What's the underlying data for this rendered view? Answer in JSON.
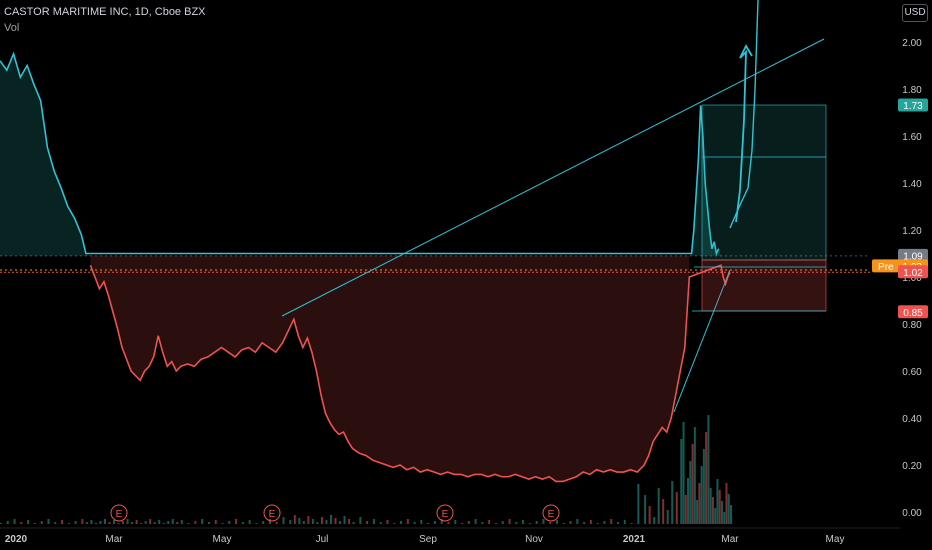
{
  "header": {
    "title": "CASTOR MARITIME INC, 1D, Cboe BZX",
    "indicator": "Vol",
    "currency": "USD"
  },
  "chart_data": {
    "type": "line",
    "symbol": "CASTOR MARITIME INC",
    "interval": "1D",
    "exchange": "Cboe BZX",
    "ylim": [
      0,
      2.1
    ],
    "y_ticks": [
      "2.00",
      "1.80",
      "1.60",
      "1.40",
      "1.20",
      "1.00",
      "0.80",
      "0.60",
      "0.40",
      "0.20",
      "0.00"
    ],
    "x_ticks": [
      "2020",
      "Mar",
      "May",
      "Jul",
      "Sep",
      "Nov",
      "2021",
      "Mar",
      "May"
    ],
    "series": [
      {
        "values": [
          [
            0,
            1.92
          ],
          [
            3,
            1.88
          ],
          [
            6,
            1.95
          ],
          [
            9,
            1.85
          ],
          [
            12,
            1.9
          ],
          [
            15,
            1.82
          ],
          [
            18,
            1.75
          ],
          [
            21,
            1.55
          ],
          [
            24,
            1.45
          ],
          [
            27,
            1.38
          ],
          [
            30,
            1.3
          ],
          [
            33,
            1.25
          ],
          [
            36,
            1.18
          ],
          [
            38,
            1.1
          ],
          [
            40,
            1.05
          ],
          [
            42,
            1.0
          ],
          [
            44,
            0.95
          ],
          [
            46,
            0.98
          ],
          [
            48,
            0.92
          ],
          [
            50,
            0.85
          ],
          [
            52,
            0.78
          ],
          [
            54,
            0.7
          ],
          [
            56,
            0.65
          ],
          [
            58,
            0.6
          ],
          [
            60,
            0.58
          ],
          [
            62,
            0.56
          ],
          [
            64,
            0.6
          ],
          [
            66,
            0.62
          ],
          [
            68,
            0.66
          ],
          [
            70,
            0.75
          ],
          [
            72,
            0.68
          ],
          [
            74,
            0.62
          ],
          [
            76,
            0.64
          ],
          [
            78,
            0.6
          ],
          [
            80,
            0.62
          ],
          [
            83,
            0.63
          ],
          [
            86,
            0.62
          ],
          [
            89,
            0.65
          ],
          [
            92,
            0.66
          ],
          [
            95,
            0.68
          ],
          [
            98,
            0.7
          ],
          [
            101,
            0.68
          ],
          [
            104,
            0.66
          ],
          [
            107,
            0.69
          ],
          [
            110,
            0.7
          ],
          [
            113,
            0.68
          ],
          [
            116,
            0.72
          ],
          [
            119,
            0.7
          ],
          [
            122,
            0.68
          ],
          [
            125,
            0.72
          ],
          [
            128,
            0.78
          ],
          [
            130,
            0.82
          ],
          [
            132,
            0.75
          ],
          [
            134,
            0.7
          ],
          [
            136,
            0.74
          ],
          [
            138,
            0.68
          ],
          [
            140,
            0.6
          ],
          [
            142,
            0.5
          ],
          [
            144,
            0.42
          ],
          [
            146,
            0.38
          ],
          [
            148,
            0.35
          ],
          [
            150,
            0.33
          ],
          [
            152,
            0.34
          ],
          [
            154,
            0.3
          ],
          [
            156,
            0.27
          ],
          [
            159,
            0.25
          ],
          [
            162,
            0.24
          ],
          [
            165,
            0.22
          ],
          [
            168,
            0.21
          ],
          [
            171,
            0.2
          ],
          [
            174,
            0.19
          ],
          [
            177,
            0.2
          ],
          [
            180,
            0.18
          ],
          [
            183,
            0.19
          ],
          [
            186,
            0.17
          ],
          [
            189,
            0.18
          ],
          [
            192,
            0.17
          ],
          [
            195,
            0.16
          ],
          [
            198,
            0.17
          ],
          [
            201,
            0.16
          ],
          [
            204,
            0.16
          ],
          [
            207,
            0.15
          ],
          [
            210,
            0.16
          ],
          [
            213,
            0.16
          ],
          [
            216,
            0.15
          ],
          [
            219,
            0.16
          ],
          [
            222,
            0.15
          ],
          [
            225,
            0.15
          ],
          [
            228,
            0.16
          ],
          [
            231,
            0.15
          ],
          [
            234,
            0.14
          ],
          [
            237,
            0.15
          ],
          [
            240,
            0.14
          ],
          [
            243,
            0.15
          ],
          [
            246,
            0.13
          ],
          [
            249,
            0.13
          ],
          [
            252,
            0.14
          ],
          [
            255,
            0.15
          ],
          [
            258,
            0.17
          ],
          [
            261,
            0.16
          ],
          [
            264,
            0.18
          ],
          [
            267,
            0.17
          ],
          [
            270,
            0.18
          ],
          [
            273,
            0.17
          ],
          [
            276,
            0.17
          ],
          [
            279,
            0.18
          ],
          [
            282,
            0.17
          ],
          [
            285,
            0.2
          ],
          [
            287,
            0.24
          ],
          [
            289,
            0.3
          ],
          [
            291,
            0.33
          ],
          [
            293,
            0.36
          ],
          [
            295,
            0.34
          ],
          [
            297,
            0.4
          ],
          [
            299,
            0.5
          ],
          [
            301,
            0.6
          ],
          [
            302,
            0.65
          ],
          [
            303,
            0.7
          ],
          [
            304,
            0.85
          ],
          [
            305,
            1.0
          ],
          [
            306,
            1.1
          ],
          [
            307,
            1.2
          ],
          [
            308,
            1.35
          ],
          [
            309,
            1.5
          ],
          [
            310,
            1.73
          ],
          [
            311,
            1.6
          ],
          [
            312,
            1.4
          ],
          [
            313,
            1.3
          ],
          [
            314,
            1.2
          ],
          [
            315,
            1.12
          ],
          [
            316,
            1.15
          ],
          [
            317,
            1.1
          ],
          [
            318,
            1.12
          ],
          [
            319,
            1.05
          ],
          [
            320,
            1.0
          ],
          [
            321,
            0.97
          ],
          [
            322,
            1.0
          ],
          [
            323,
            1.02
          ]
        ]
      }
    ],
    "price_labels": [
      {
        "text": "1.73",
        "value": 1.73,
        "color": "#26a69a"
      },
      {
        "text": "1.09",
        "value": 1.09,
        "color": "#787b86"
      },
      {
        "text": "Pre · 1.03",
        "value": 1.045,
        "color": "#f7931a"
      },
      {
        "text": "1.02",
        "value": 1.02,
        "color": "#ef5350"
      },
      {
        "text": "0.85",
        "value": 0.85,
        "color": "#ef5350"
      }
    ],
    "earnings_markers": [
      "E",
      "E",
      "E",
      "E"
    ],
    "colors": {
      "up": "#26a69a",
      "down": "#ef5350",
      "line": "#2ec4d6",
      "grid": "#1a1a1a"
    }
  }
}
